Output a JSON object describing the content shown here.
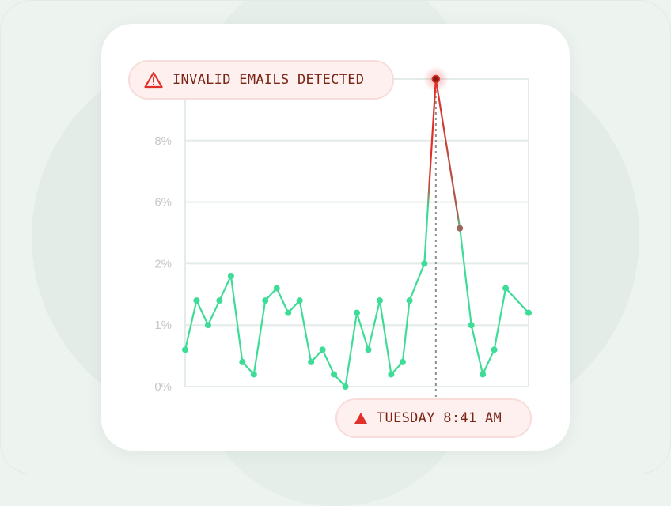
{
  "alert": {
    "label": "INVALID EMAILS DETECTED",
    "icon": "warning-triangle-icon"
  },
  "marker": {
    "label": "TUESDAY 8:41 AM",
    "icon": "triangle-up-icon"
  },
  "colors": {
    "normal": "#3ddc97",
    "anomaly": "#e0302a",
    "peak": "#8b1a12",
    "grid": "#e3ece8",
    "tick": "#c4c8c6"
  },
  "chart_data": {
    "type": "line",
    "title": "",
    "xlabel": "",
    "ylabel": "",
    "y_ticks": [
      {
        "value": 0,
        "label": "0%"
      },
      {
        "value": 1,
        "label": "1%"
      },
      {
        "value": 2,
        "label": "2%"
      },
      {
        "value": 6,
        "label": "6%"
      },
      {
        "value": 8,
        "label": "8%"
      },
      {
        "value": 10,
        "label": ""
      }
    ],
    "ylim": [
      0,
      10
    ],
    "grid": true,
    "x": [
      0,
      1,
      2,
      3,
      4,
      5,
      6,
      7,
      8,
      9,
      10,
      11,
      12,
      13,
      14,
      15,
      16,
      17,
      18,
      19,
      19.6,
      20.9,
      21.9,
      24,
      25,
      26,
      27,
      28,
      30
    ],
    "values": [
      0.6,
      1.4,
      1.0,
      1.4,
      1.8,
      0.4,
      0.2,
      1.4,
      1.6,
      1.2,
      1.4,
      0.4,
      0.6,
      0.2,
      0,
      1.2,
      0.6,
      1.4,
      0.2,
      0.4,
      1.4,
      2.0,
      10,
      4.3,
      1.0,
      0.2,
      0.6,
      1.6,
      1.2
    ],
    "highlight_index": 22
  }
}
